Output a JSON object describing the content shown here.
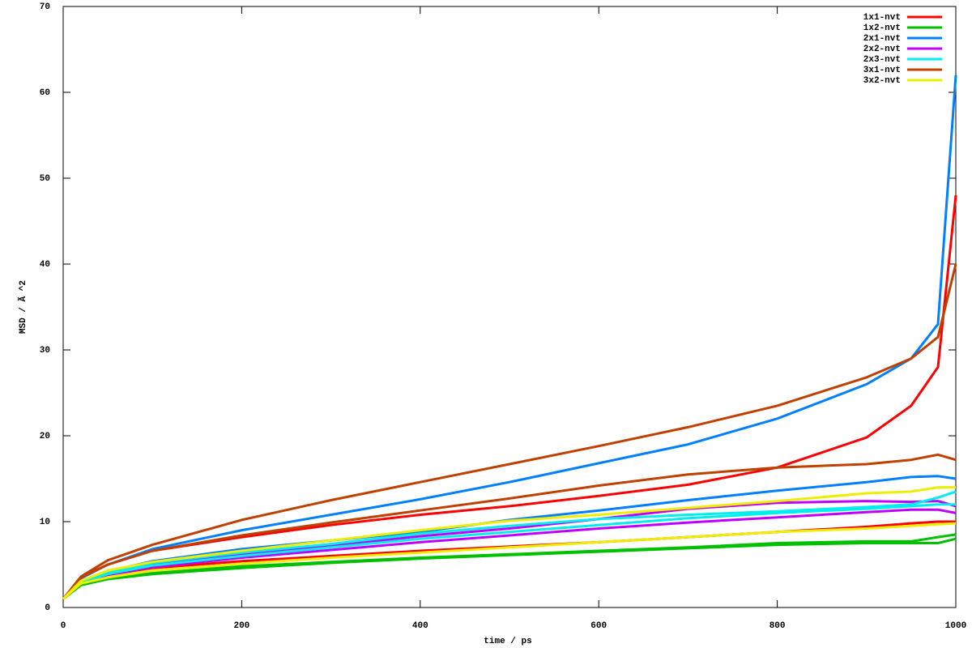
{
  "chart_data": {
    "type": "line",
    "xlabel": "time / ps",
    "ylabel": "MSD / Ã ^2",
    "x": [
      0,
      20,
      50,
      100,
      200,
      300,
      400,
      500,
      600,
      700,
      800,
      900,
      950,
      980,
      1000
    ],
    "xlim": [
      0,
      1000
    ],
    "xticks": [
      0,
      200,
      400,
      600,
      800,
      1000
    ],
    "ylim": [
      0,
      70
    ],
    "yticks": [
      0,
      10,
      20,
      30,
      40,
      50,
      60,
      70
    ],
    "grid": false,
    "legend": "top-right",
    "series": [
      {
        "name": "1x1-nvt",
        "color": "#ff0000",
        "values": [
          [
            1,
            3.5,
            5,
            6.6,
            8.2,
            9.6,
            10.8,
            11.8,
            13,
            14.3,
            16.3,
            19.8,
            23.5,
            28,
            48
          ],
          [
            1,
            3,
            3.8,
            4.6,
            5.4,
            6,
            6.6,
            7.1,
            7.6,
            8.2,
            8.8,
            9.4,
            9.8,
            10,
            10
          ]
        ]
      },
      {
        "name": "1x2-nvt",
        "color": "#00c000",
        "values": [
          [
            1,
            2.7,
            3.4,
            4,
            4.8,
            5.3,
            5.8,
            6.2,
            6.6,
            7,
            7.5,
            7.7,
            7.7,
            8.2,
            8.5
          ],
          [
            1,
            2.6,
            3.3,
            3.9,
            4.6,
            5.2,
            5.7,
            6.1,
            6.5,
            6.9,
            7.3,
            7.5,
            7.5,
            7.5,
            8
          ]
        ]
      },
      {
        "name": "2x1-nvt",
        "color": "#0080ff",
        "values": [
          [
            1,
            3.4,
            5,
            6.8,
            9,
            10.8,
            12.6,
            14.6,
            16.8,
            19,
            22,
            26,
            29,
            33,
            62
          ],
          [
            1,
            3,
            4.2,
            5.4,
            6.8,
            7.8,
            8.8,
            10.2,
            11.3,
            12.5,
            13.6,
            14.6,
            15.2,
            15.3,
            15
          ]
        ]
      },
      {
        "name": "2x2-nvt",
        "color": "#c000ff",
        "values": [
          [
            1,
            3,
            4,
            5,
            6.2,
            7.2,
            8.3,
            9.2,
            10.3,
            11.5,
            12.2,
            12.4,
            12.3,
            12.4,
            11.8
          ],
          [
            1,
            2.9,
            3.8,
            4.7,
            5.8,
            6.7,
            7.6,
            8.4,
            9.2,
            9.9,
            10.5,
            11.1,
            11.4,
            11.4,
            11
          ]
        ]
      },
      {
        "name": "2x3-nvt",
        "color": "#00eeee",
        "values": [
          [
            1,
            3,
            4.1,
            5.2,
            6.4,
            7.4,
            8.6,
            9.5,
            10.3,
            10.8,
            11.2,
            11.7,
            12,
            12.8,
            13.5
          ],
          [
            1,
            2.9,
            3.9,
            4.9,
            6,
            7,
            8,
            8.8,
            9.6,
            10.4,
            11,
            11.5,
            11.8,
            12,
            12
          ]
        ]
      },
      {
        "name": "3x1-nvt",
        "color": "#c04000",
        "values": [
          [
            1,
            3.6,
            5.5,
            7.3,
            10.2,
            12.5,
            14.6,
            16.7,
            18.8,
            21,
            23.5,
            26.8,
            29,
            31.5,
            40
          ],
          [
            1,
            3.5,
            5,
            6.6,
            8.4,
            9.9,
            11.3,
            12.7,
            14.2,
            15.5,
            16.3,
            16.7,
            17.2,
            17.8,
            17.2
          ]
        ]
      },
      {
        "name": "3x2-nvt",
        "color": "#eeee00",
        "values": [
          [
            1,
            3.1,
            4.3,
            5.3,
            6.6,
            7.8,
            9,
            10.1,
            10.8,
            11.6,
            12.4,
            13.3,
            13.5,
            14,
            14
          ],
          [
            1,
            2.8,
            3.5,
            4.3,
            5.1,
            5.8,
            6.4,
            7,
            7.6,
            8.2,
            8.8,
            9.2,
            9.5,
            9.7,
            9.8
          ]
        ]
      }
    ]
  }
}
